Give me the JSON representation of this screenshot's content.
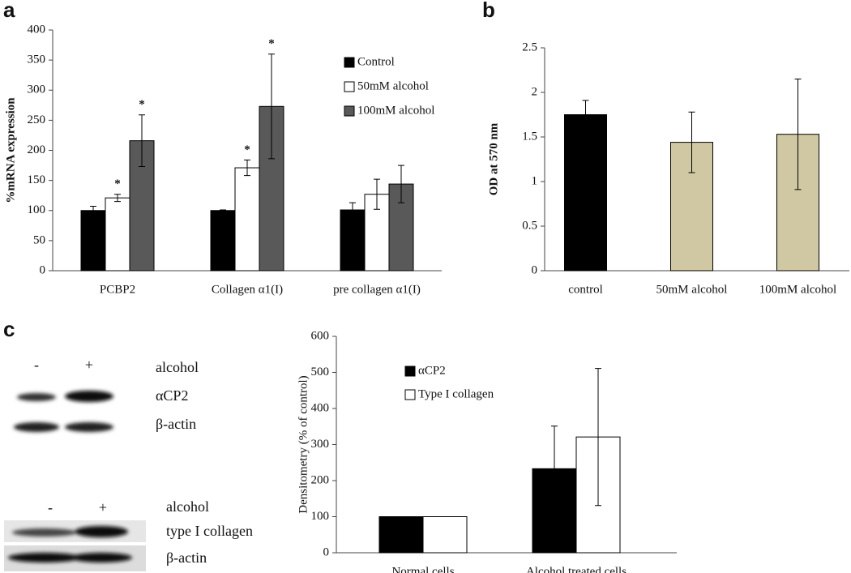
{
  "panel_labels": [
    "a",
    "b",
    "c"
  ],
  "blots": [
    {
      "lanes": [
        "-",
        "+"
      ],
      "treatment": "alcohol",
      "rows": [
        "αCP2",
        "β-actin"
      ]
    },
    {
      "lanes": [
        "-",
        "+"
      ],
      "treatment": "alcohol",
      "rows": [
        "type I collagen",
        "β-actin"
      ]
    }
  ],
  "chart_data": [
    {
      "type": "bar",
      "ylabel": "%mRNA expression",
      "categories": [
        "PCBP2",
        "Collagen α1(I)",
        "pre collagen α1(I)"
      ],
      "series": [
        {
          "name": "Control",
          "color": "#000000",
          "values": [
            100,
            100,
            101
          ],
          "errors": [
            7,
            1,
            12
          ],
          "annotations": [
            null,
            null,
            null
          ]
        },
        {
          "name": "50mM alcohol",
          "color": "#ffffff",
          "values": [
            121,
            171,
            127
          ],
          "errors": [
            6,
            13,
            25
          ],
          "annotations": [
            "*",
            "*",
            null
          ]
        },
        {
          "name": "100mM alcohol",
          "color": "#595959",
          "values": [
            216,
            273,
            144
          ],
          "errors": [
            43,
            87,
            31
          ],
          "annotations": [
            "*",
            "*",
            null
          ]
        }
      ],
      "ylim": [
        0,
        400
      ],
      "yticks": [
        0,
        50,
        100,
        150,
        200,
        250,
        300,
        350,
        400
      ],
      "grid": false,
      "legend": "top-right"
    },
    {
      "type": "bar",
      "ylabel": "OD at 570 nm",
      "categories": [
        "control",
        "50mM alcohol",
        "100mM alcohol"
      ],
      "values": [
        1.75,
        1.44,
        1.53
      ],
      "errors": [
        0.16,
        0.34,
        0.62
      ],
      "colors": [
        "#000000",
        "#d0c8a2",
        "#d0c8a2"
      ],
      "ylim": [
        0,
        2.5
      ],
      "yticks": [
        0,
        0.5,
        1,
        1.5,
        2,
        2.5
      ],
      "grid": false
    },
    {
      "type": "bar",
      "ylabel": "Densitometry (% of control)",
      "categories": [
        "Normal cells",
        "Alcohol treated cells"
      ],
      "series": [
        {
          "name": "αCP2",
          "color": "#000000",
          "values": [
            100,
            233
          ],
          "errors": [
            null,
            118
          ]
        },
        {
          "name": "Type I collagen",
          "color": "#ffffff",
          "values": [
            100,
            321
          ],
          "errors": [
            null,
            190
          ]
        }
      ],
      "ylim": [
        0,
        600
      ],
      "yticks": [
        0,
        100,
        200,
        300,
        400,
        500,
        600
      ],
      "grid": false,
      "legend": "top-left"
    }
  ]
}
